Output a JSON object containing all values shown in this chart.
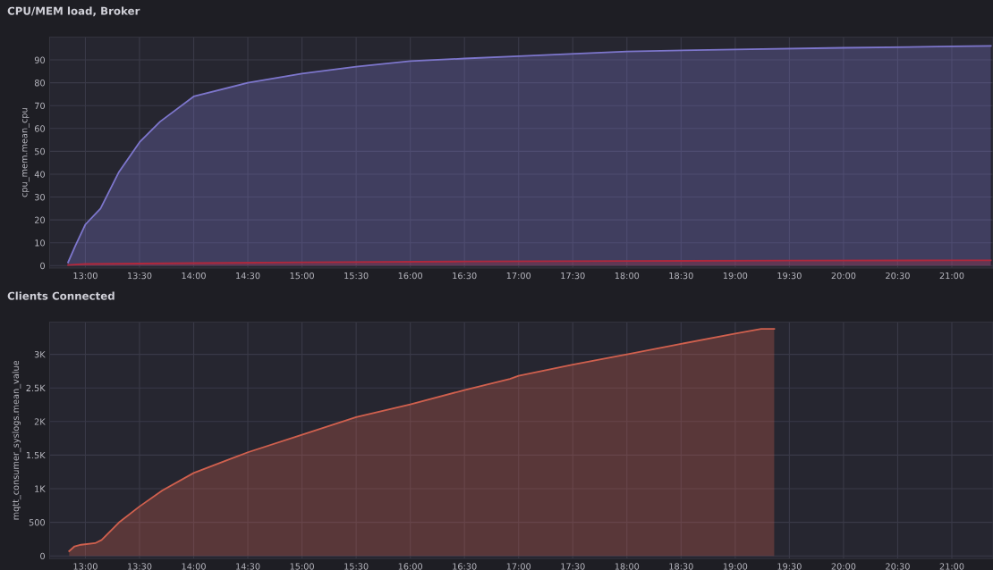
{
  "chart_data": [
    {
      "type": "area",
      "title": "CPU/MEM load, Broker",
      "ylabel": "cpu_mem.mean_cpu",
      "series": [
        {
          "color": "#7d76cc",
          "x": [
            12.84,
            12.91,
            13.0,
            13.14,
            13.31,
            13.5,
            13.69,
            14.0,
            14.5,
            15.0,
            15.5,
            16.0,
            16.5,
            17.0,
            18.0,
            19.0,
            20.0,
            21.0,
            21.36
          ],
          "values": [
            1.4,
            9,
            18,
            25,
            41,
            54,
            63,
            74,
            80,
            84,
            87,
            89.5,
            90.6,
            91.6,
            93.7,
            94.6,
            95.3,
            95.9,
            96.1
          ]
        },
        {
          "color": "#b0283c",
          "x": [
            12.84,
            13.0,
            14.0,
            15.0,
            16.5,
            18.0,
            19.5,
            21.0,
            21.36
          ],
          "values": [
            0.3,
            0.7,
            1.1,
            1.4,
            1.8,
            2.0,
            2.2,
            2.3,
            2.3
          ]
        }
      ],
      "xlim": [
        12.67,
        21.38
      ],
      "ylim": [
        -1,
        100
      ],
      "xticks": [
        {
          "value": 13,
          "label": "13:00"
        },
        {
          "value": 13.5,
          "label": "13:30"
        },
        {
          "value": 14,
          "label": "14:00"
        },
        {
          "value": 14.5,
          "label": "14:30"
        },
        {
          "value": 15,
          "label": "15:00"
        },
        {
          "value": 15.5,
          "label": "15:30"
        },
        {
          "value": 16,
          "label": "16:00"
        },
        {
          "value": 16.5,
          "label": "16:30"
        },
        {
          "value": 17,
          "label": "17:00"
        },
        {
          "value": 17.5,
          "label": "17:30"
        },
        {
          "value": 18,
          "label": "18:00"
        },
        {
          "value": 18.5,
          "label": "18:30"
        },
        {
          "value": 19,
          "label": "19:00"
        },
        {
          "value": 19.5,
          "label": "19:30"
        },
        {
          "value": 20,
          "label": "20:00"
        },
        {
          "value": 20.5,
          "label": "20:30"
        },
        {
          "value": 21,
          "label": "21:00"
        }
      ],
      "yticks": [
        0,
        10,
        20,
        30,
        40,
        50,
        60,
        70,
        80,
        90
      ],
      "grid": true
    },
    {
      "type": "area",
      "title": "Clients Connected",
      "ylabel": "mqtt_consumer_syslogs.mean_value",
      "series": [
        {
          "color": "#d0604e",
          "x": [
            12.85,
            12.9,
            12.96,
            13.09,
            13.15,
            13.31,
            13.5,
            13.71,
            14.0,
            14.5,
            15.0,
            15.5,
            16.0,
            16.5,
            16.92,
            17.0,
            17.5,
            18.0,
            18.5,
            19.0,
            19.24,
            19.36
          ],
          "values": [
            71,
            142,
            166,
            190,
            237,
            498,
            736,
            973,
            1234,
            1542,
            1803,
            2064,
            2254,
            2468,
            2634,
            2681,
            2847,
            3000,
            3156,
            3308,
            3379,
            3379
          ]
        }
      ],
      "xlim": [
        12.67,
        21.38
      ],
      "ylim": [
        -40,
        3480
      ],
      "xticks": [
        {
          "value": 13,
          "label": "13:00"
        },
        {
          "value": 13.5,
          "label": "13:30"
        },
        {
          "value": 14,
          "label": "14:00"
        },
        {
          "value": 14.5,
          "label": "14:30"
        },
        {
          "value": 15,
          "label": "15:00"
        },
        {
          "value": 15.5,
          "label": "15:30"
        },
        {
          "value": 16,
          "label": "16:00"
        },
        {
          "value": 16.5,
          "label": "16:30"
        },
        {
          "value": 17,
          "label": "17:00"
        },
        {
          "value": 17.5,
          "label": "17:30"
        },
        {
          "value": 18,
          "label": "18:00"
        },
        {
          "value": 18.5,
          "label": "18:30"
        },
        {
          "value": 19,
          "label": "19:00"
        },
        {
          "value": 19.5,
          "label": "19:30"
        },
        {
          "value": 20,
          "label": "20:00"
        },
        {
          "value": 20.5,
          "label": "20:30"
        },
        {
          "value": 21,
          "label": "21:00"
        }
      ],
      "yticks": [
        0,
        500,
        {
          "value": 1000,
          "label": "1K"
        },
        {
          "value": 1500,
          "label": "1.5K"
        },
        {
          "value": 2000,
          "label": "2K"
        },
        {
          "value": 2500,
          "label": "2.5K"
        },
        {
          "value": 3000,
          "label": "3K"
        }
      ],
      "grid": true
    }
  ]
}
